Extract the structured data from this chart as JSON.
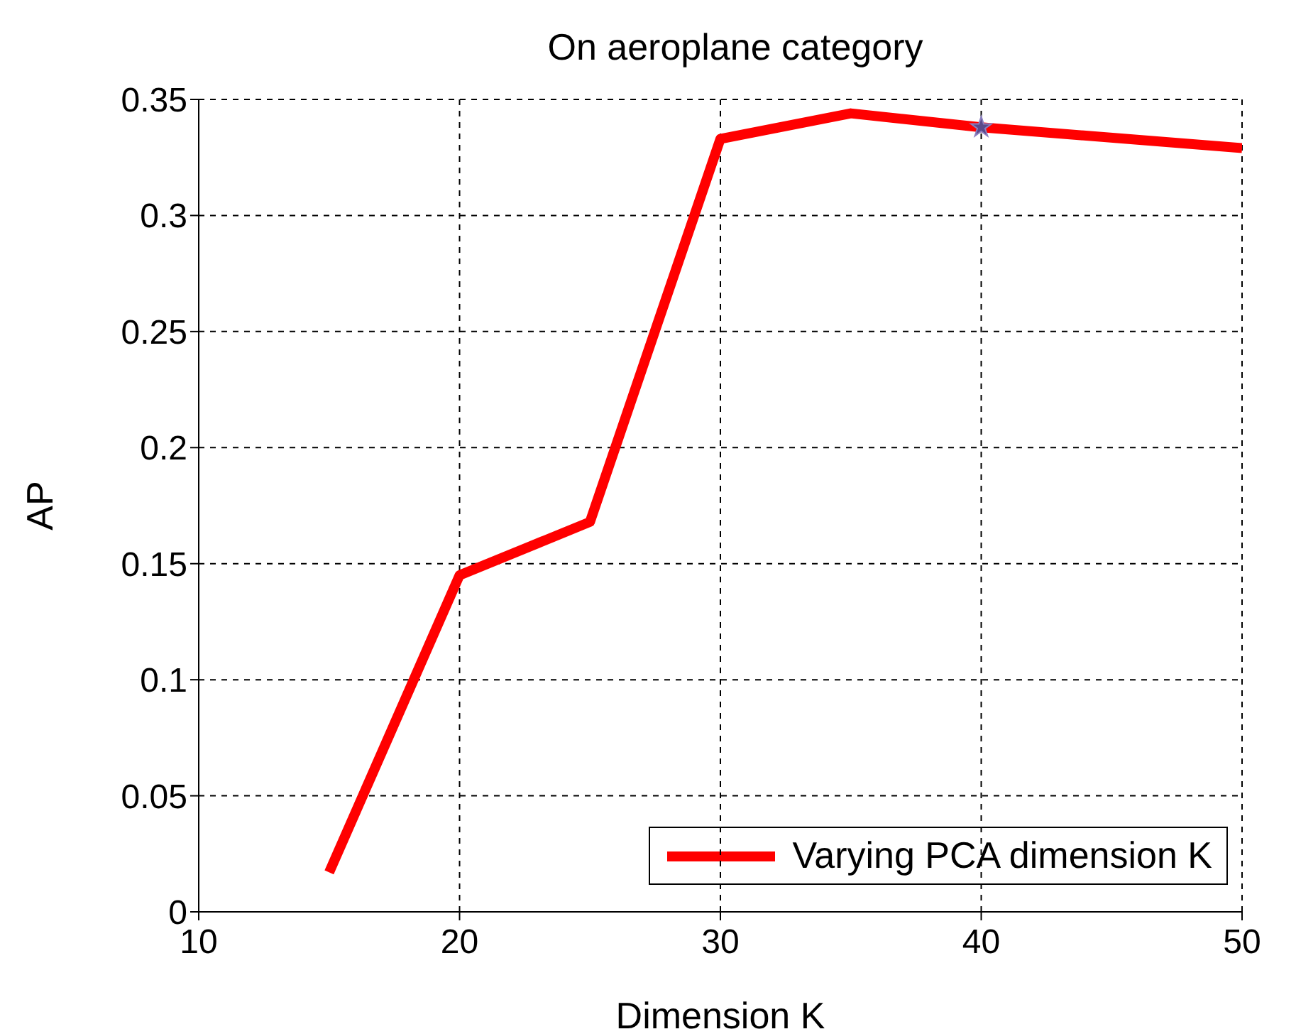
{
  "chart_data": {
    "type": "line",
    "title": "On aeroplane category",
    "xlabel": "Dimension K",
    "ylabel": "AP",
    "x": [
      15,
      20,
      25,
      30,
      35,
      40,
      50
    ],
    "series": [
      {
        "name": "Varying PCA dimension K",
        "color": "#ff0000",
        "values": [
          0.017,
          0.145,
          0.168,
          0.333,
          0.344,
          0.338,
          0.329
        ]
      },
      {
        "type": "scatter",
        "color": "#5b4a8b",
        "marker": "star",
        "x": [
          40
        ],
        "values": [
          0.338
        ]
      }
    ],
    "xlim": [
      10,
      50
    ],
    "xticks": [
      10,
      20,
      30,
      40,
      50
    ],
    "ylim": [
      0,
      0.35
    ],
    "yticks": [
      0,
      0.05,
      0.1,
      0.15,
      0.2,
      0.25,
      0.3,
      0.35
    ],
    "grid": true,
    "legend": "bottom right",
    "marker": "none",
    "line_style": "solid"
  }
}
